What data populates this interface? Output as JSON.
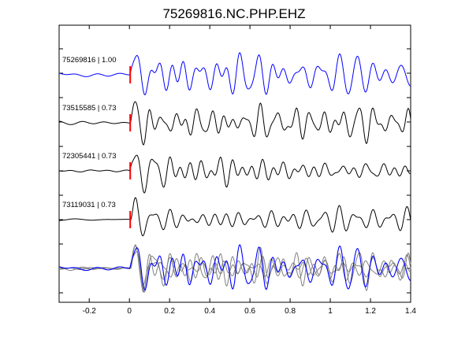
{
  "chart_data": {
    "type": "line",
    "title": "75269816.NC.PHP.EHZ",
    "xlabel": "",
    "ylabel": "",
    "xlim": [
      -0.35,
      1.4
    ],
    "x_ticks": [
      -0.2,
      0,
      0.2,
      0.4,
      0.6,
      0.8,
      1,
      1.2,
      1.4
    ],
    "x_tick_labels": [
      "-0.2",
      "0",
      "0.2",
      "0.4",
      "0.6",
      "0.8",
      "1",
      "1.2",
      "1.4"
    ],
    "grid": false,
    "pick_marker": {
      "x": 0,
      "color": "#ff0000"
    },
    "traces": [
      {
        "label": "75269816 | 1.00",
        "color": "#0000ff",
        "seed": 11,
        "pick_offset": 0.0
      },
      {
        "label": "73515585 | 0.73",
        "color": "#000000",
        "seed": 23,
        "pick_offset": 0.004
      },
      {
        "label": "72305441 | 0.73",
        "color": "#000000",
        "seed": 37,
        "pick_offset": 0.0
      },
      {
        "label": "73119031 | 0.73",
        "color": "#000000",
        "seed": 53,
        "pick_offset": 0.006
      }
    ],
    "stack": {
      "reference_color": "#0000ff",
      "others_color": "#808080"
    }
  }
}
